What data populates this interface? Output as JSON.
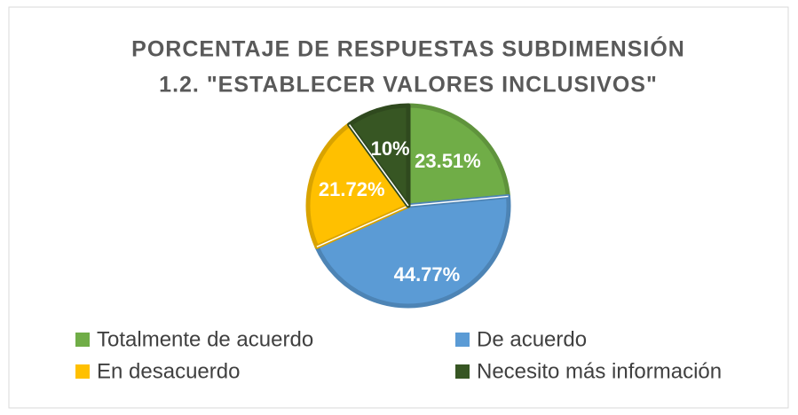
{
  "chart_data": {
    "type": "pie",
    "title": [
      "PORCENTAJE DE RESPUESTAS SUBDIMENSIÓN",
      "1.2. \"ESTABLECER VALORES INCLUSIVOS\""
    ],
    "categories": [
      "Totalmente de acuerdo",
      "De acuerdo",
      "En desacuerdo",
      "Necesito más información"
    ],
    "values": [
      23.51,
      44.77,
      21.72,
      10
    ],
    "value_labels": [
      "23.51%",
      "44.77%",
      "21.72%",
      "10%"
    ],
    "colors": [
      "#70ad47",
      "#5b9bd5",
      "#ffc000",
      "#375623"
    ],
    "legend": "bottom"
  }
}
